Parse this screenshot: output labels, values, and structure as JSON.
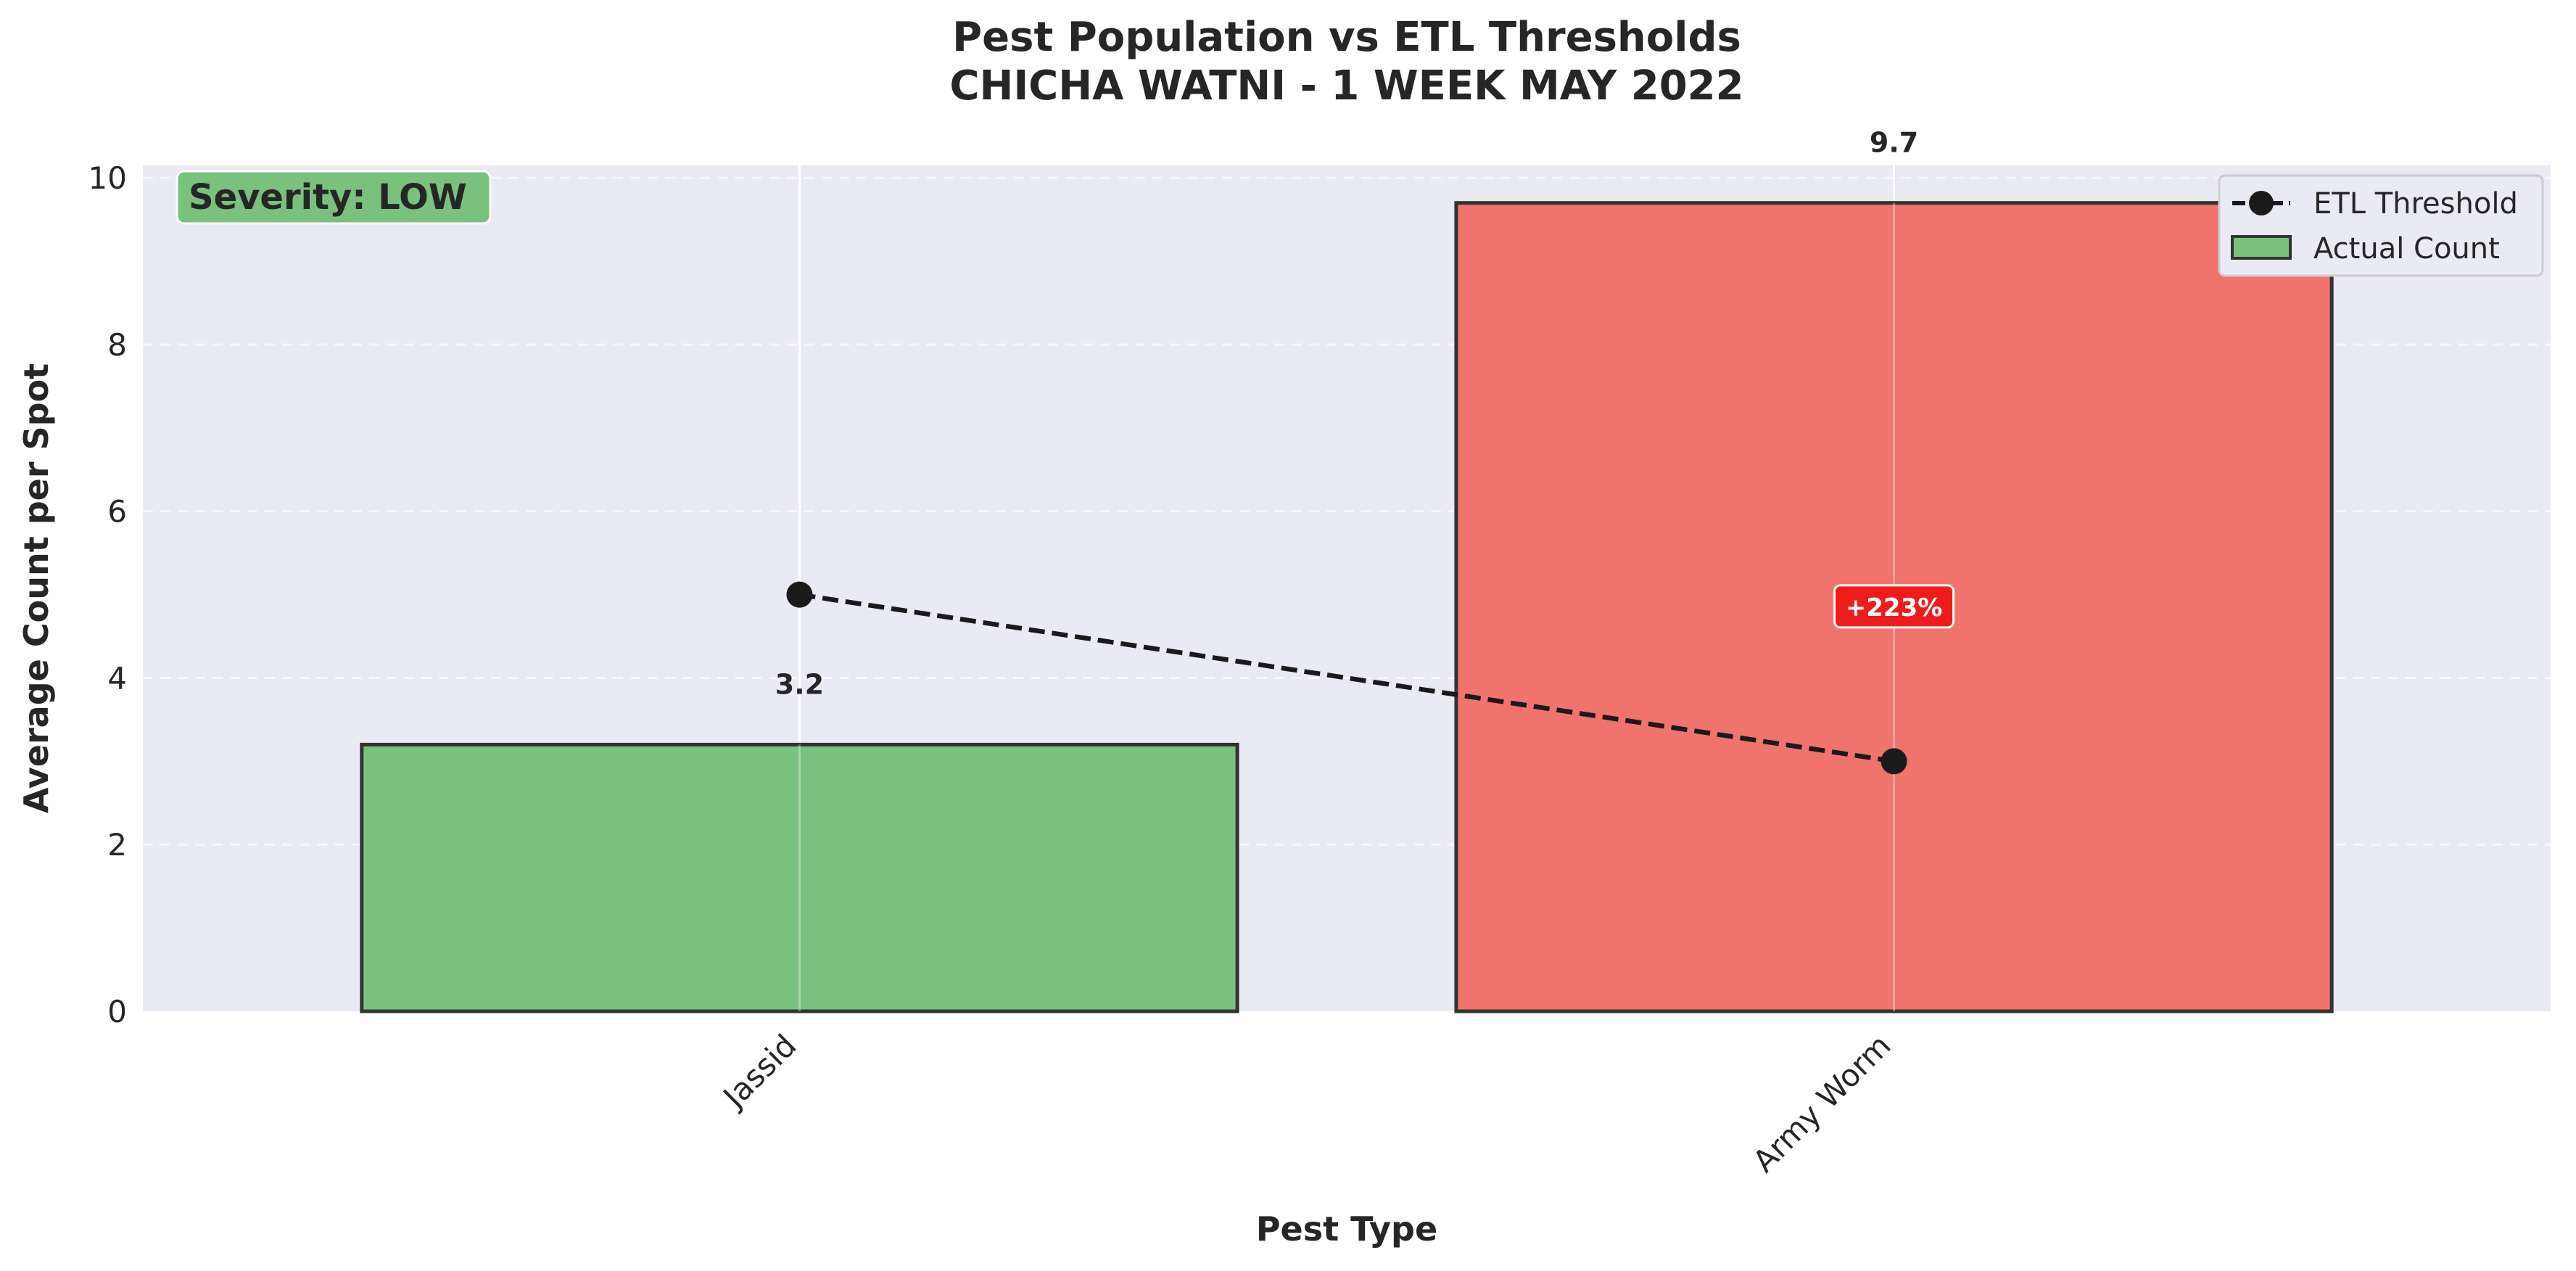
{
  "chart_data": {
    "type": "bar",
    "title_lines": [
      "Pest Population vs ETL Thresholds",
      "CHICHA WATNI - 1 WEEK MAY 2022"
    ],
    "xlabel": "Pest Type",
    "ylabel": "Average Count per Spot",
    "categories": [
      "Jassid",
      "Army Worm"
    ],
    "series": [
      {
        "name": "Actual Count",
        "type": "bar",
        "values": [
          3.2,
          9.7
        ],
        "value_labels": [
          "3.2",
          "9.7"
        ],
        "colors": [
          "#7bc17e",
          "#f0736e"
        ]
      },
      {
        "name": "ETL Threshold",
        "type": "line",
        "style": "dashed",
        "marker": "circle",
        "values": [
          5,
          3
        ],
        "color": "#1a1a1a"
      }
    ],
    "yticks": [
      0,
      2,
      4,
      6,
      8,
      10
    ],
    "ylim": [
      0,
      10.15
    ],
    "grid": true,
    "legend_position": "top-right",
    "annotations": [
      {
        "text": "Severity: LOW",
        "location": "top-left",
        "bg_color": "#7bc17e"
      },
      {
        "text": "+223%",
        "category": "Army Worm",
        "y": 4.85,
        "bg_color": "#ee1c1c"
      }
    ],
    "background_color": "#eaeaf2"
  }
}
